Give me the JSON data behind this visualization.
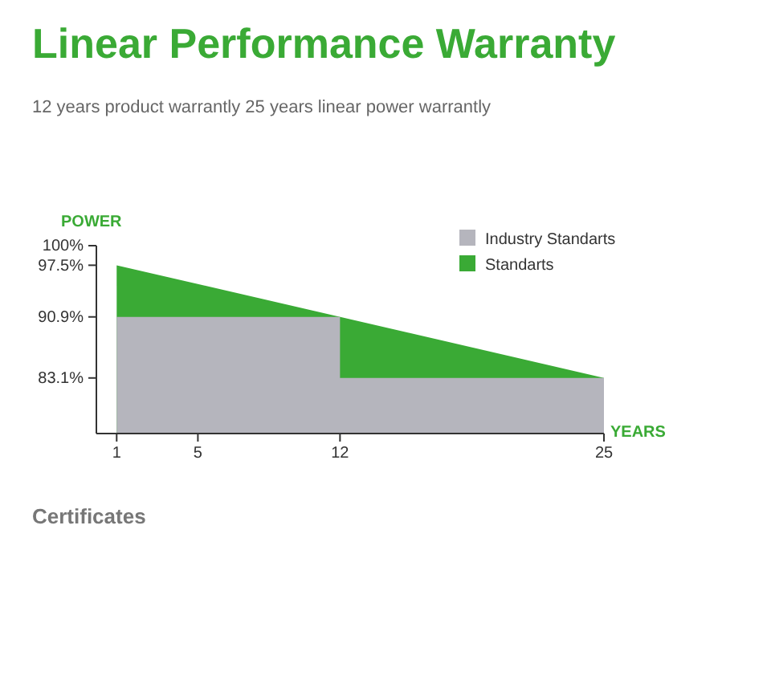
{
  "chart_data": {
    "type": "area",
    "title": "Linear Performance Warranty",
    "subtitle": "12 years product warrantly 25 years linear power warrantly",
    "ylabel": "POWER",
    "xlabel": "YEARS",
    "series": [
      {
        "name": "Standarts",
        "color": "#3aaa35",
        "x": [
          1,
          25
        ],
        "values": [
          97.5,
          83.1
        ]
      },
      {
        "name": "Industry Standarts",
        "color": "#b5b5bd",
        "x": [
          1,
          12,
          12,
          25
        ],
        "values": [
          90.9,
          90.9,
          83.1,
          83.1
        ]
      }
    ],
    "xlim": [
      0,
      25
    ],
    "xticks": [
      1,
      5,
      12,
      25
    ],
    "ylim": [
      76,
      100
    ],
    "yticks": [
      {
        "value": 100,
        "label": "100%"
      },
      {
        "value": 97.5,
        "label": "97.5%"
      },
      {
        "value": 90.9,
        "label": "90.9%"
      },
      {
        "value": 83.1,
        "label": "83.1%"
      }
    ],
    "grid": false,
    "legend": "top right",
    "annotations": [
      "Certificates"
    ]
  }
}
